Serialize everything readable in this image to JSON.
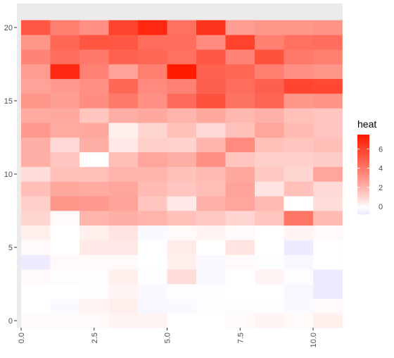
{
  "chart_data": {
    "type": "heatmap",
    "title": "",
    "xlabel": "",
    "ylabel": "",
    "x": [
      0,
      1,
      2,
      3,
      4,
      5,
      6,
      7,
      8,
      9,
      10
    ],
    "y": [
      0,
      1,
      2,
      3,
      4,
      5,
      6,
      7,
      8,
      9,
      10,
      11,
      12,
      13,
      14,
      15,
      16,
      17,
      18,
      19,
      20
    ],
    "xlim": [
      0,
      11
    ],
    "ylim": [
      -0.5,
      21
    ],
    "x_ticks": [
      {
        "value": 0,
        "label": "0.0"
      },
      {
        "value": 2.5,
        "label": "2.5"
      },
      {
        "value": 5,
        "label": "5.0"
      },
      {
        "value": 7.5,
        "label": "7.5"
      },
      {
        "value": 10,
        "label": "10.0"
      }
    ],
    "y_ticks": [
      {
        "value": 0,
        "label": "0"
      },
      {
        "value": 5,
        "label": "5"
      },
      {
        "value": 10,
        "label": "10"
      },
      {
        "value": 15,
        "label": "15"
      },
      {
        "value": 20,
        "label": "20"
      }
    ],
    "values": [
      [
        0.1,
        0.1,
        0.1,
        0.2,
        0.2,
        0.0,
        0.0,
        0.1,
        0.2,
        0.1,
        0.3
      ],
      [
        0.0,
        -0.2,
        0.2,
        0.3,
        -0.3,
        -0.2,
        -0.1,
        -0.1,
        -0.1,
        -0.2,
        0.1
      ],
      [
        0.0,
        0.0,
        -0.1,
        0.2,
        -0.2,
        -0.1,
        -0.1,
        0.0,
        0.0,
        -0.3,
        -0.7
      ],
      [
        0.1,
        -0.1,
        -0.1,
        0.3,
        -0.1,
        0.8,
        -0.2,
        0.0,
        0.2,
        -0.1,
        -0.7
      ],
      [
        -0.7,
        0.1,
        0.1,
        0.1,
        0.0,
        0.3,
        -0.2,
        0.1,
        -0.1,
        -0.3,
        0.0
      ],
      [
        0.1,
        0.0,
        0.5,
        0.5,
        0.0,
        0.4,
        0.0,
        0.6,
        0.0,
        -0.7,
        0.0
      ],
      [
        0.3,
        0.0,
        0.3,
        0.6,
        -0.2,
        0.1,
        0.2,
        0.1,
        0.0,
        0.2,
        0.1
      ],
      [
        1.0,
        0.1,
        2.0,
        2.2,
        2.0,
        1.6,
        1.4,
        1.0,
        1.5,
        4.1,
        1.8
      ],
      [
        1.2,
        3.0,
        2.9,
        2.6,
        1.5,
        0.5,
        2.1,
        2.5,
        1.8,
        0.0,
        0.8
      ],
      [
        1.7,
        2.4,
        2.3,
        2.5,
        1.8,
        1.5,
        1.7,
        2.6,
        0.6,
        1.6,
        0.9
      ],
      [
        0.8,
        1.6,
        1.6,
        2.0,
        2.0,
        1.6,
        1.8,
        2.4,
        1.4,
        1.0,
        2.5
      ],
      [
        2.2,
        1.5,
        0.0,
        1.7,
        2.5,
        2.2,
        3.2,
        1.5,
        1.2,
        1.2,
        1.3
      ],
      [
        2.2,
        0.9,
        2.2,
        0.5,
        1.2,
        1.1,
        2.0,
        3.4,
        1.6,
        1.5,
        1.7
      ],
      [
        2.9,
        2.3,
        2.4,
        0.3,
        1.0,
        1.6,
        0.9,
        1.6,
        2.5,
        1.8,
        1.5
      ],
      [
        2.3,
        2.4,
        1.5,
        2.2,
        2.4,
        2.0,
        2.4,
        1.9,
        2.1,
        1.6,
        1.5
      ],
      [
        3.0,
        2.7,
        3.3,
        4.0,
        3.2,
        4.5,
        5.4,
        4.2,
        4.7,
        3.0,
        3.1
      ],
      [
        2.6,
        2.9,
        3.2,
        4.6,
        3.4,
        3.7,
        4.9,
        4.4,
        4.9,
        5.9,
        5.8
      ],
      [
        2.8,
        7.0,
        3.7,
        2.6,
        3.8,
        7.5,
        4.8,
        4.6,
        3.8,
        3.2,
        3.0
      ],
      [
        3.6,
        4.4,
        4.0,
        4.8,
        4.6,
        4.3,
        5.2,
        3.6,
        5.4,
        4.0,
        3.8
      ],
      [
        3.0,
        4.6,
        5.3,
        5.2,
        4.4,
        4.4,
        3.4,
        6.0,
        3.8,
        4.3,
        4.4
      ],
      [
        5.2,
        3.8,
        3.2,
        6.0,
        7.0,
        4.3,
        6.5,
        2.8,
        3.0,
        3.0,
        3.1
      ]
    ],
    "legend": {
      "title": "heat",
      "placement": "right",
      "breaks": [
        0,
        2,
        4,
        6
      ],
      "labels": [
        "0",
        "2",
        "4",
        "6"
      ],
      "min": -0.8,
      "max": 7.5
    },
    "colors": {
      "low": "#ece7ff",
      "mid": "#ffffff",
      "high": "#ff1a00",
      "panel_background": "#ebebeb",
      "grid": "#ffffff",
      "tick_text": "#4d4d4d"
    },
    "grid": true
  }
}
